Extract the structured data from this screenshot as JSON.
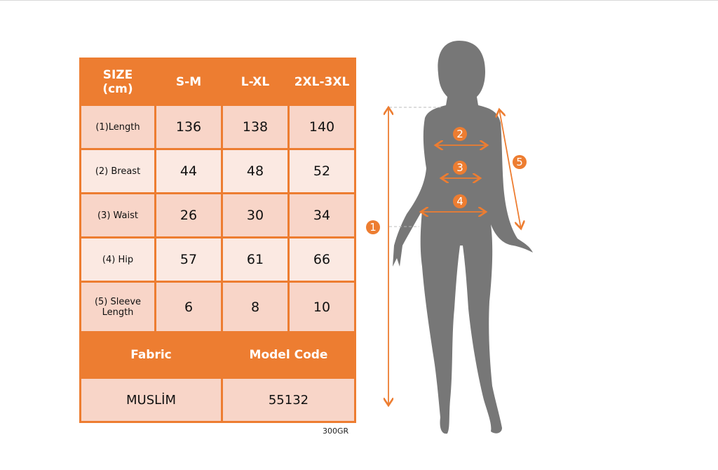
{
  "table": {
    "header": [
      "SIZE\n(cm)",
      "S-M",
      "L-XL",
      "2XL-3XL"
    ],
    "header_size_line1": "SIZE",
    "header_size_line2": "(cm)",
    "rows": [
      {
        "label": "(1)Length",
        "values": [
          "136",
          "138",
          "140"
        ]
      },
      {
        "label": "(2) Breast",
        "values": [
          "44",
          "48",
          "52"
        ]
      },
      {
        "label": "(3) Waist",
        "values": [
          "26",
          "30",
          "34"
        ]
      },
      {
        "label": "(4) Hip",
        "values": [
          "57",
          "61",
          "66"
        ]
      },
      {
        "label": "(5) Sleeve Length",
        "values": [
          "6",
          "8",
          "10"
        ]
      }
    ],
    "footer_headers": [
      "Fabric",
      "Model Code"
    ],
    "footer_values": [
      "MUSLİM",
      "55132"
    ]
  },
  "note": "300GR",
  "figure": {
    "markers": [
      "1",
      "2",
      "3",
      "4",
      "5"
    ]
  },
  "colors": {
    "accent": "#ED7D31",
    "row_dark": "#F8D5C8",
    "row_light": "#FBE9E2",
    "silhouette": "#777777"
  }
}
